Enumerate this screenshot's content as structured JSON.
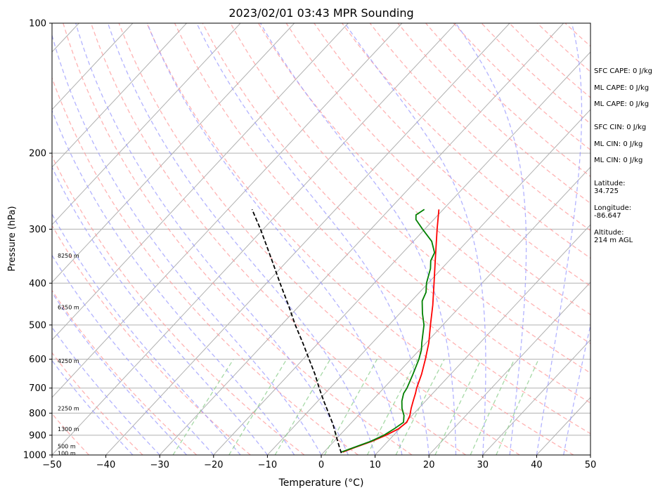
{
  "chart_data": {
    "type": "line",
    "title": "2023/02/01 03:43 MPR Sounding",
    "xlabel": "Temperature (°C)",
    "ylabel": "Pressure (hPa)",
    "xlim": [
      -50,
      50
    ],
    "ylim": [
      1000,
      100
    ],
    "y_scale": "log",
    "skew": "skew-T",
    "x_ticks": [
      "−50",
      "−40",
      "−30",
      "−20",
      "−10",
      "0",
      "10",
      "20",
      "30",
      "40",
      "50"
    ],
    "x_tick_values": [
      -50,
      -40,
      -30,
      -20,
      -10,
      0,
      10,
      20,
      30,
      40,
      50
    ],
    "y_ticks": [
      "100",
      "200",
      "300",
      "400",
      "500",
      "600",
      "700",
      "800",
      "900",
      "1000"
    ],
    "y_tick_values": [
      100,
      200,
      300,
      400,
      500,
      600,
      700,
      800,
      900,
      1000
    ],
    "grid": true,
    "series": [
      {
        "role": "temperature",
        "color": "#ff0000",
        "points": [
          {
            "p": 985,
            "t": 3.5
          },
          {
            "p": 960,
            "t": 5.0
          },
          {
            "p": 930,
            "t": 7.0
          },
          {
            "p": 900,
            "t": 8.6
          },
          {
            "p": 870,
            "t": 9.8
          },
          {
            "p": 840,
            "t": 10.2
          },
          {
            "p": 810,
            "t": 9.6
          },
          {
            "p": 780,
            "t": 8.6
          },
          {
            "p": 750,
            "t": 7.7
          },
          {
            "p": 720,
            "t": 6.8
          },
          {
            "p": 700,
            "t": 6.1
          },
          {
            "p": 650,
            "t": 4.6
          },
          {
            "p": 600,
            "t": 2.7
          },
          {
            "p": 550,
            "t": 0.5
          },
          {
            "p": 500,
            "t": -2.3
          },
          {
            "p": 450,
            "t": -5.3
          },
          {
            "p": 400,
            "t": -8.9
          },
          {
            "p": 350,
            "t": -13.0
          },
          {
            "p": 300,
            "t": -17.7
          },
          {
            "p": 270,
            "t": -20.8
          }
        ]
      },
      {
        "role": "dewpoint",
        "color": "#008000",
        "points": [
          {
            "p": 985,
            "t": 3.2
          },
          {
            "p": 960,
            "t": 4.8
          },
          {
            "p": 930,
            "t": 6.8
          },
          {
            "p": 900,
            "t": 8.2
          },
          {
            "p": 870,
            "t": 9.0
          },
          {
            "p": 840,
            "t": 9.6
          },
          {
            "p": 810,
            "t": 8.5
          },
          {
            "p": 780,
            "t": 6.9
          },
          {
            "p": 750,
            "t": 5.6
          },
          {
            "p": 720,
            "t": 4.6
          },
          {
            "p": 700,
            "t": 4.3
          },
          {
            "p": 650,
            "t": 3.0
          },
          {
            "p": 600,
            "t": 1.5
          },
          {
            "p": 570,
            "t": 0.3
          },
          {
            "p": 550,
            "t": -0.8
          },
          {
            "p": 500,
            "t": -3.5
          },
          {
            "p": 470,
            "t": -5.8
          },
          {
            "p": 440,
            "t": -8.0
          },
          {
            "p": 420,
            "t": -8.8
          },
          {
            "p": 400,
            "t": -10.3
          },
          {
            "p": 370,
            "t": -12.1
          },
          {
            "p": 355,
            "t": -13.4
          },
          {
            "p": 340,
            "t": -14.1
          },
          {
            "p": 320,
            "t": -16.6
          },
          {
            "p": 300,
            "t": -20.4
          },
          {
            "p": 285,
            "t": -23.3
          },
          {
            "p": 278,
            "t": -24.1
          },
          {
            "p": 270,
            "t": -23.5
          }
        ]
      },
      {
        "role": "parcel",
        "color": "#000000",
        "style": "dashed",
        "points": [
          {
            "p": 990,
            "t": 3.4
          },
          {
            "p": 950,
            "t": 1.6
          },
          {
            "p": 900,
            "t": -0.7
          },
          {
            "p": 850,
            "t": -3.1
          },
          {
            "p": 800,
            "t": -5.9
          },
          {
            "p": 750,
            "t": -8.9
          },
          {
            "p": 700,
            "t": -12.0
          },
          {
            "p": 650,
            "t": -15.2
          },
          {
            "p": 600,
            "t": -18.9
          },
          {
            "p": 550,
            "t": -22.9
          },
          {
            "p": 500,
            "t": -27.4
          },
          {
            "p": 450,
            "t": -32.1
          },
          {
            "p": 400,
            "t": -37.5
          },
          {
            "p": 350,
            "t": -43.5
          },
          {
            "p": 300,
            "t": -50.5
          },
          {
            "p": 270,
            "t": -55.5
          }
        ]
      }
    ],
    "height_labels": [
      {
        "label": "100 m",
        "p": 990
      },
      {
        "label": "500 m",
        "p": 955
      },
      {
        "label": "1300 m",
        "p": 870
      },
      {
        "label": "2250 m",
        "p": 780
      },
      {
        "label": "4250 m",
        "p": 605
      },
      {
        "label": "6250 m",
        "p": 455
      },
      {
        "label": "8250 m",
        "p": 345
      }
    ],
    "info_panel": [
      "SFC CAPE: 0 J/kg",
      "ML CAPE: 0 J/kg",
      "ML CAPE: 0 J/kg",
      "SFC CIN: 0 J/kg",
      "ML CIN: 0 J/kg",
      "ML CIN: 0 J/kg",
      "Latitude:",
      "34.725",
      "Longitude:",
      "-86.647",
      "Altitude:",
      "214 m AGL"
    ],
    "colors": {
      "isotherm": "#b0b0b0",
      "isobar": "#b0b0b0",
      "dry_adiabat": "#ff9999",
      "moist_adiabat": "#9999ff",
      "mixing_ratio": "#88cc88"
    }
  }
}
